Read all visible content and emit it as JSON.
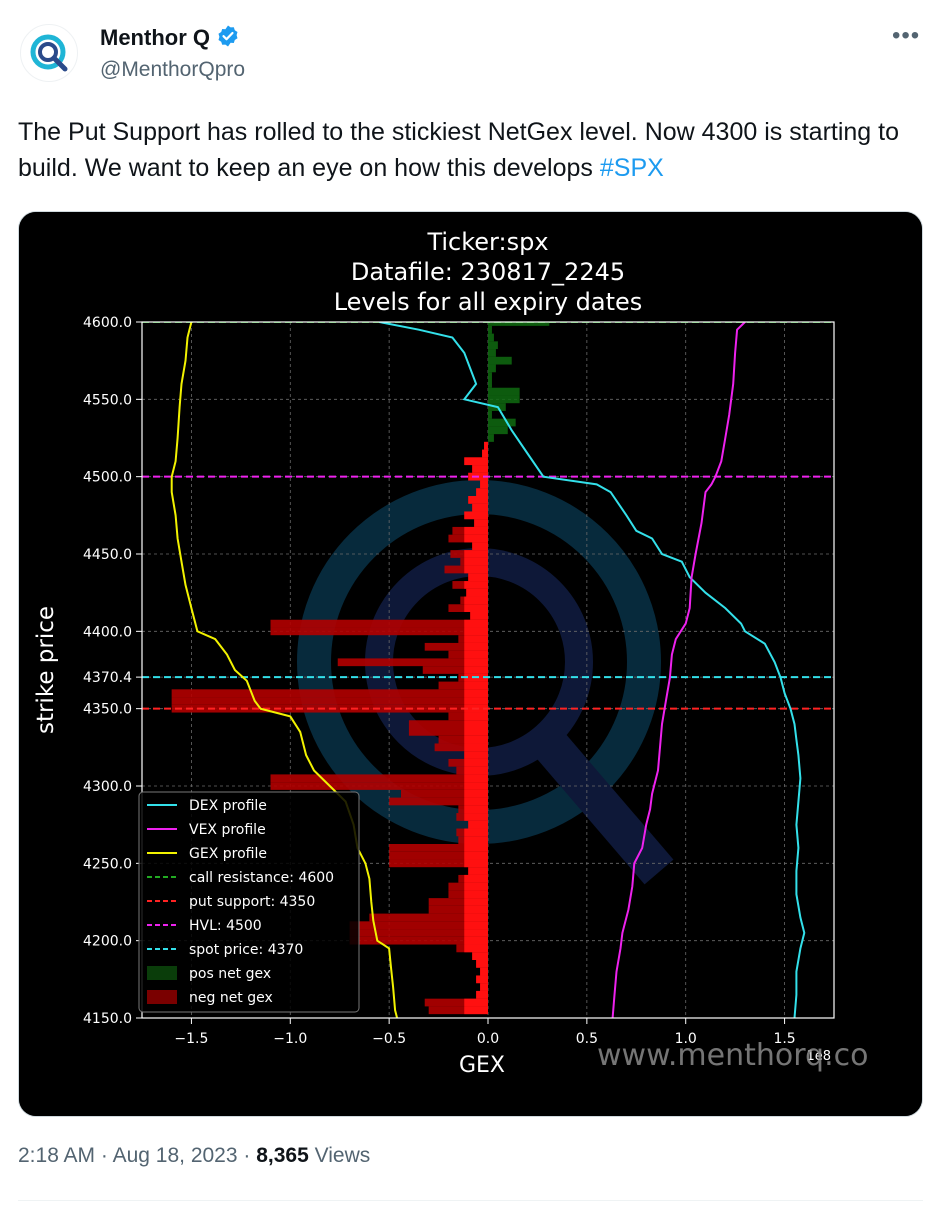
{
  "tweet": {
    "author_name": "Menthor Q",
    "handle": "@MenthorQpro",
    "text": "The Put Support has rolled to the stickiest NetGex level. Now 4300 is starting to build. We want to keep an eye on how this develops ",
    "hashtag": "#SPX",
    "time": "2:18 AM",
    "date": "Aug 18, 2023",
    "views_count": "8,365",
    "views_label": "Views",
    "sep": "·"
  },
  "icons": {
    "avatar": "menthorq-logo",
    "verified": "verified-badge-icon",
    "more": "more-options-icon"
  },
  "colors": {
    "hashtag": "#1d9bf0",
    "chart_bg": "#000000"
  },
  "chart_data": {
    "type": "line",
    "title_lines": [
      "Ticker:spx",
      "Datafile: 230817_2245",
      "Levels for all expiry dates"
    ],
    "xlabel": "GEX",
    "ylabel": "strike price",
    "x_scale_label": "1e8",
    "watermark": "www.menthorq.co",
    "xlim": [
      -1.75,
      1.75
    ],
    "ylim": [
      4150,
      4600
    ],
    "x_ticks": [
      -1.5,
      -1.0,
      -0.5,
      0.0,
      0.5,
      1.0,
      1.5
    ],
    "x_tick_labels": [
      "−1.5",
      "−1.0",
      "−0.5",
      "0.0",
      "0.5",
      "1.0",
      "1.5"
    ],
    "y_ticks": [
      4150,
      4200,
      4250,
      4300,
      4350,
      4370.4,
      4400,
      4450,
      4500,
      4550,
      4600
    ],
    "y_tick_labels": [
      "4150.0",
      "4200.0",
      "4250.0",
      "4300.0",
      "4350.0",
      "4370.4",
      "4400.0",
      "4450.0",
      "4500.0",
      "4550.0",
      "4600.0"
    ],
    "grid": true,
    "legend_position": "lower-left",
    "series": [
      {
        "name": "DEX profile",
        "color": "#33e0ea",
        "points": [
          [
            -0.55,
            4600
          ],
          [
            -0.35,
            4595
          ],
          [
            -0.18,
            4590
          ],
          [
            -0.12,
            4580
          ],
          [
            -0.09,
            4570
          ],
          [
            -0.06,
            4560
          ],
          [
            -0.12,
            4550
          ],
          [
            0.05,
            4545
          ],
          [
            0.12,
            4530
          ],
          [
            0.2,
            4515
          ],
          [
            0.28,
            4500
          ],
          [
            0.55,
            4495
          ],
          [
            0.62,
            4490
          ],
          [
            0.7,
            4475
          ],
          [
            0.75,
            4465
          ],
          [
            0.83,
            4460
          ],
          [
            0.88,
            4450
          ],
          [
            0.98,
            4445
          ],
          [
            1.02,
            4435
          ],
          [
            1.1,
            4425
          ],
          [
            1.2,
            4415
          ],
          [
            1.28,
            4405
          ],
          [
            1.3,
            4400
          ],
          [
            1.4,
            4392
          ],
          [
            1.45,
            4380
          ],
          [
            1.48,
            4370
          ],
          [
            1.5,
            4360
          ],
          [
            1.53,
            4350
          ],
          [
            1.55,
            4340
          ],
          [
            1.56,
            4330
          ],
          [
            1.57,
            4320
          ],
          [
            1.58,
            4305
          ],
          [
            1.57,
            4290
          ],
          [
            1.56,
            4275
          ],
          [
            1.57,
            4260
          ],
          [
            1.56,
            4245
          ],
          [
            1.56,
            4230
          ],
          [
            1.58,
            4215
          ],
          [
            1.6,
            4205
          ],
          [
            1.58,
            4195
          ],
          [
            1.56,
            4180
          ],
          [
            1.56,
            4165
          ],
          [
            1.55,
            4150
          ]
        ]
      },
      {
        "name": "VEX profile",
        "color": "#ee22ee",
        "points": [
          [
            1.3,
            4600
          ],
          [
            1.26,
            4595
          ],
          [
            1.25,
            4580
          ],
          [
            1.24,
            4560
          ],
          [
            1.22,
            4540
          ],
          [
            1.2,
            4525
          ],
          [
            1.18,
            4510
          ],
          [
            1.15,
            4500
          ],
          [
            1.13,
            4495
          ],
          [
            1.1,
            4490
          ],
          [
            1.08,
            4470
          ],
          [
            1.05,
            4450
          ],
          [
            1.03,
            4435
          ],
          [
            1.02,
            4415
          ],
          [
            1.0,
            4405
          ],
          [
            0.95,
            4395
          ],
          [
            0.93,
            4385
          ],
          [
            0.92,
            4370
          ],
          [
            0.9,
            4355
          ],
          [
            0.88,
            4340
          ],
          [
            0.87,
            4325
          ],
          [
            0.86,
            4310
          ],
          [
            0.83,
            4295
          ],
          [
            0.82,
            4285
          ],
          [
            0.8,
            4275
          ],
          [
            0.78,
            4260
          ],
          [
            0.74,
            4250
          ],
          [
            0.73,
            4235
          ],
          [
            0.71,
            4220
          ],
          [
            0.68,
            4205
          ],
          [
            0.67,
            4195
          ],
          [
            0.65,
            4180
          ],
          [
            0.64,
            4165
          ],
          [
            0.63,
            4150
          ]
        ]
      },
      {
        "name": "GEX profile",
        "color": "#f2f200",
        "points": [
          [
            -1.5,
            4600
          ],
          [
            -1.52,
            4590
          ],
          [
            -1.53,
            4575
          ],
          [
            -1.55,
            4560
          ],
          [
            -1.56,
            4545
          ],
          [
            -1.57,
            4525
          ],
          [
            -1.58,
            4510
          ],
          [
            -1.6,
            4500
          ],
          [
            -1.6,
            4490
          ],
          [
            -1.58,
            4475
          ],
          [
            -1.57,
            4460
          ],
          [
            -1.55,
            4445
          ],
          [
            -1.53,
            4430
          ],
          [
            -1.5,
            4415
          ],
          [
            -1.47,
            4400
          ],
          [
            -1.38,
            4395
          ],
          [
            -1.32,
            4385
          ],
          [
            -1.28,
            4375
          ],
          [
            -1.22,
            4368
          ],
          [
            -1.18,
            4355
          ],
          [
            -1.15,
            4350
          ],
          [
            -1.0,
            4345
          ],
          [
            -0.95,
            4335
          ],
          [
            -0.92,
            4320
          ],
          [
            -0.88,
            4310
          ],
          [
            -0.8,
            4300
          ],
          [
            -0.72,
            4290
          ],
          [
            -0.68,
            4275
          ],
          [
            -0.66,
            4260
          ],
          [
            -0.62,
            4250
          ],
          [
            -0.6,
            4240
          ],
          [
            -0.59,
            4225
          ],
          [
            -0.58,
            4213
          ],
          [
            -0.56,
            4200
          ],
          [
            -0.5,
            4195
          ],
          [
            -0.49,
            4182
          ],
          [
            -0.48,
            4170
          ],
          [
            -0.47,
            4155
          ],
          [
            -0.46,
            4150
          ]
        ]
      }
    ],
    "bars": [
      {
        "strike": 4600,
        "value": 0.31
      },
      {
        "strike": 4595,
        "value": 0.02
      },
      {
        "strike": 4590,
        "value": 0.03
      },
      {
        "strike": 4585,
        "value": 0.05
      },
      {
        "strike": 4580,
        "value": 0.04
      },
      {
        "strike": 4575,
        "value": 0.12
      },
      {
        "strike": 4570,
        "value": 0.04
      },
      {
        "strike": 4565,
        "value": 0.02
      },
      {
        "strike": 4560,
        "value": 0.02
      },
      {
        "strike": 4555,
        "value": 0.16
      },
      {
        "strike": 4550,
        "value": 0.16
      },
      {
        "strike": 4545,
        "value": 0.09
      },
      {
        "strike": 4540,
        "value": 0.02
      },
      {
        "strike": 4535,
        "value": 0.14
      },
      {
        "strike": 4530,
        "value": 0.1
      },
      {
        "strike": 4525,
        "value": 0.03
      },
      {
        "strike": 4520,
        "value": -0.02
      },
      {
        "strike": 4515,
        "value": -0.03
      },
      {
        "strike": 4510,
        "value": -0.12
      },
      {
        "strike": 4505,
        "value": -0.08
      },
      {
        "strike": 4500,
        "value": -0.1
      },
      {
        "strike": 4495,
        "value": -0.04
      },
      {
        "strike": 4490,
        "value": -0.06
      },
      {
        "strike": 4485,
        "value": -0.1
      },
      {
        "strike": 4480,
        "value": -0.08
      },
      {
        "strike": 4475,
        "value": -0.12
      },
      {
        "strike": 4470,
        "value": -0.07
      },
      {
        "strike": 4465,
        "value": -0.18
      },
      {
        "strike": 4460,
        "value": -0.2
      },
      {
        "strike": 4455,
        "value": -0.08
      },
      {
        "strike": 4450,
        "value": -0.19
      },
      {
        "strike": 4445,
        "value": -0.14
      },
      {
        "strike": 4440,
        "value": -0.22
      },
      {
        "strike": 4435,
        "value": -0.1
      },
      {
        "strike": 4430,
        "value": -0.18
      },
      {
        "strike": 4425,
        "value": -0.11
      },
      {
        "strike": 4420,
        "value": -0.14
      },
      {
        "strike": 4415,
        "value": -0.2
      },
      {
        "strike": 4410,
        "value": -0.09
      },
      {
        "strike": 4405,
        "value": -1.1
      },
      {
        "strike": 4400,
        "value": -1.1
      },
      {
        "strike": 4395,
        "value": -0.15
      },
      {
        "strike": 4390,
        "value": -0.32
      },
      {
        "strike": 4385,
        "value": -0.2
      },
      {
        "strike": 4380,
        "value": -0.76
      },
      {
        "strike": 4375,
        "value": -0.33
      },
      {
        "strike": 4370,
        "value": -0.15
      },
      {
        "strike": 4365,
        "value": -0.25
      },
      {
        "strike": 4360,
        "value": -1.6
      },
      {
        "strike": 4355,
        "value": -1.6
      },
      {
        "strike": 4350,
        "value": -1.6
      },
      {
        "strike": 4345,
        "value": -0.2
      },
      {
        "strike": 4340,
        "value": -0.4
      },
      {
        "strike": 4335,
        "value": -0.4
      },
      {
        "strike": 4330,
        "value": -0.25
      },
      {
        "strike": 4325,
        "value": -0.27
      },
      {
        "strike": 4320,
        "value": -0.12
      },
      {
        "strike": 4315,
        "value": -0.2
      },
      {
        "strike": 4310,
        "value": -0.16
      },
      {
        "strike": 4305,
        "value": -1.1
      },
      {
        "strike": 4300,
        "value": -1.1
      },
      {
        "strike": 4295,
        "value": -0.44
      },
      {
        "strike": 4290,
        "value": -0.5
      },
      {
        "strike": 4285,
        "value": -0.15
      },
      {
        "strike": 4280,
        "value": -0.16
      },
      {
        "strike": 4275,
        "value": -0.1
      },
      {
        "strike": 4270,
        "value": -0.16
      },
      {
        "strike": 4265,
        "value": -0.15
      },
      {
        "strike": 4260,
        "value": -0.5
      },
      {
        "strike": 4255,
        "value": -0.5
      },
      {
        "strike": 4250,
        "value": -0.5
      },
      {
        "strike": 4245,
        "value": -0.1
      },
      {
        "strike": 4240,
        "value": -0.15
      },
      {
        "strike": 4235,
        "value": -0.2
      },
      {
        "strike": 4230,
        "value": -0.2
      },
      {
        "strike": 4225,
        "value": -0.3
      },
      {
        "strike": 4220,
        "value": -0.3
      },
      {
        "strike": 4215,
        "value": -0.6
      },
      {
        "strike": 4210,
        "value": -0.7
      },
      {
        "strike": 4205,
        "value": -0.7
      },
      {
        "strike": 4200,
        "value": -0.7
      },
      {
        "strike": 4195,
        "value": -0.16
      },
      {
        "strike": 4190,
        "value": -0.08
      },
      {
        "strike": 4185,
        "value": -0.06
      },
      {
        "strike": 4180,
        "value": -0.04
      },
      {
        "strike": 4175,
        "value": -0.06
      },
      {
        "strike": 4170,
        "value": -0.04
      },
      {
        "strike": 4165,
        "value": -0.06
      },
      {
        "strike": 4160,
        "value": -0.32
      },
      {
        "strike": 4155,
        "value": -0.3
      }
    ],
    "hlines": [
      {
        "name": "call resistance: 4600",
        "y": 4600,
        "color": "#22aa22"
      },
      {
        "name": "put support: 4350",
        "y": 4350,
        "color": "#ff2222"
      },
      {
        "name": "HVL: 4500",
        "y": 4500,
        "color": "#ee22ee"
      },
      {
        "name": "spot price: 4370",
        "y": 4370.4,
        "color": "#33e0ea"
      }
    ],
    "bar_legend": [
      {
        "name": "pos net gex",
        "color": "#0a3d0a"
      },
      {
        "name": "neg net gex",
        "color": "#7a0000"
      }
    ]
  }
}
